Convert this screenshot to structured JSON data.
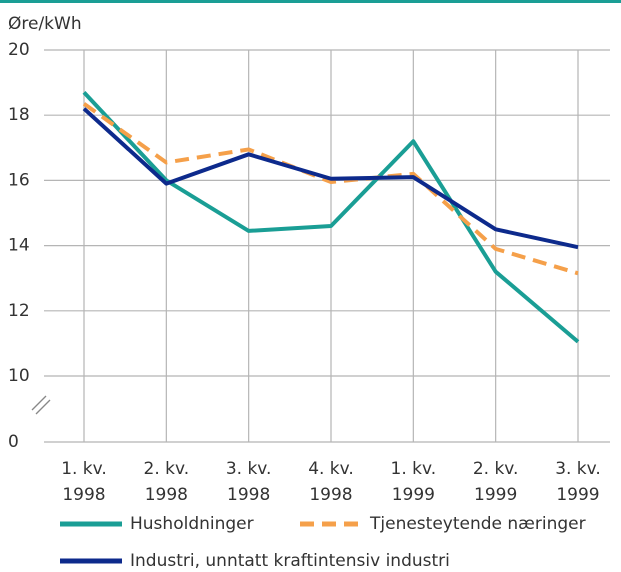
{
  "chart_data": {
    "type": "line",
    "ylabel": "Øre/kWh",
    "categories": [
      [
        "1. kv.",
        "1998"
      ],
      [
        "2. kv.",
        "1998"
      ],
      [
        "3. kv.",
        "1998"
      ],
      [
        "4. kv.",
        "1998"
      ],
      [
        "1. kv.",
        "1999"
      ],
      [
        "2. kv.",
        "1999"
      ],
      [
        "3. kv.",
        "1999"
      ]
    ],
    "series": [
      {
        "name": "Husholdninger",
        "color": "#1a9e95",
        "dash": false,
        "values": [
          18.7,
          16.0,
          14.45,
          14.6,
          17.2,
          13.2,
          11.05
        ]
      },
      {
        "name": "Tjenesteytende næringer",
        "color": "#f5a04a",
        "dash": true,
        "values": [
          18.35,
          16.55,
          16.95,
          15.95,
          16.2,
          13.9,
          13.15
        ]
      },
      {
        "name": "Industri, unntatt kraftintensiv industri",
        "color": "#0d2a8c",
        "dash": false,
        "values": [
          18.2,
          15.9,
          16.8,
          16.05,
          16.1,
          14.5,
          13.95
        ]
      }
    ],
    "ylim": [
      0,
      20
    ],
    "axis_break": [
      0,
      10
    ],
    "yticks": [
      0,
      10,
      12,
      14,
      16,
      18,
      20
    ],
    "grid": true
  }
}
